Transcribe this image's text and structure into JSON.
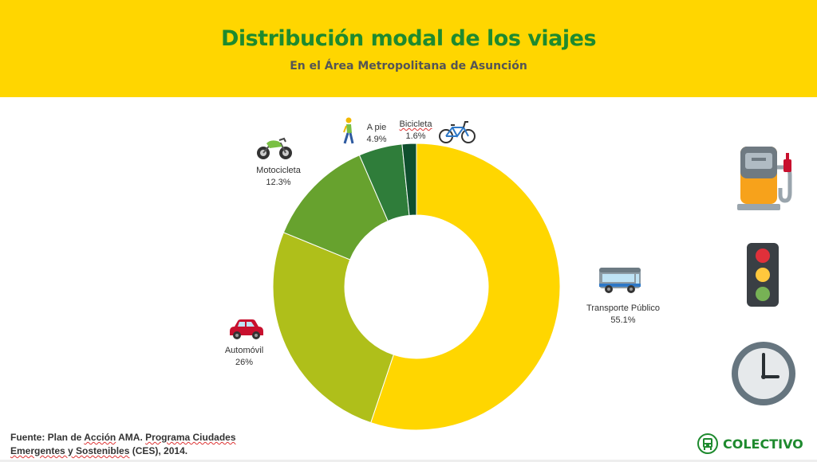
{
  "header": {
    "title": "Distribución modal de los viajes",
    "subtitle": "En el Área Metropolitana de Asunción",
    "background": "#FFD600",
    "title_color": "#1E8A2E"
  },
  "chart_data": {
    "type": "pie",
    "variant": "donut",
    "slices": [
      {
        "name": "Transporte Público",
        "value": 55.1,
        "label": "55.1%",
        "color": "#FFD600",
        "icon": "bus-icon"
      },
      {
        "name": "Automóvil",
        "value": 26,
        "label": "26%",
        "color": "#AFBF1A",
        "icon": "car-icon"
      },
      {
        "name": "Motocicleta",
        "value": 12.3,
        "label": "12.3%",
        "color": "#67A22E",
        "icon": "motorcycle-icon"
      },
      {
        "name": "A pie",
        "value": 4.9,
        "label": "4.9%",
        "color": "#2F7D3A",
        "icon": "walking-person-icon"
      },
      {
        "name": "Bicicleta",
        "value": 1.6,
        "label": "1.6%",
        "color": "#0F4F2E",
        "icon": "bicycle-icon"
      }
    ]
  },
  "side_icons": [
    "fuel-pump-icon",
    "traffic-light-icon",
    "clock-icon"
  ],
  "footer": {
    "source_prefix": "Fuente: Plan de ",
    "source_accion": "Acción",
    "source_mid": " AMA. ",
    "source_programa": "Programa Ciudades",
    "source_line2a": "Emergentes y Sostenibles",
    "source_line2b": " (CES), 2014.",
    "brand": "COLECTIVO"
  }
}
